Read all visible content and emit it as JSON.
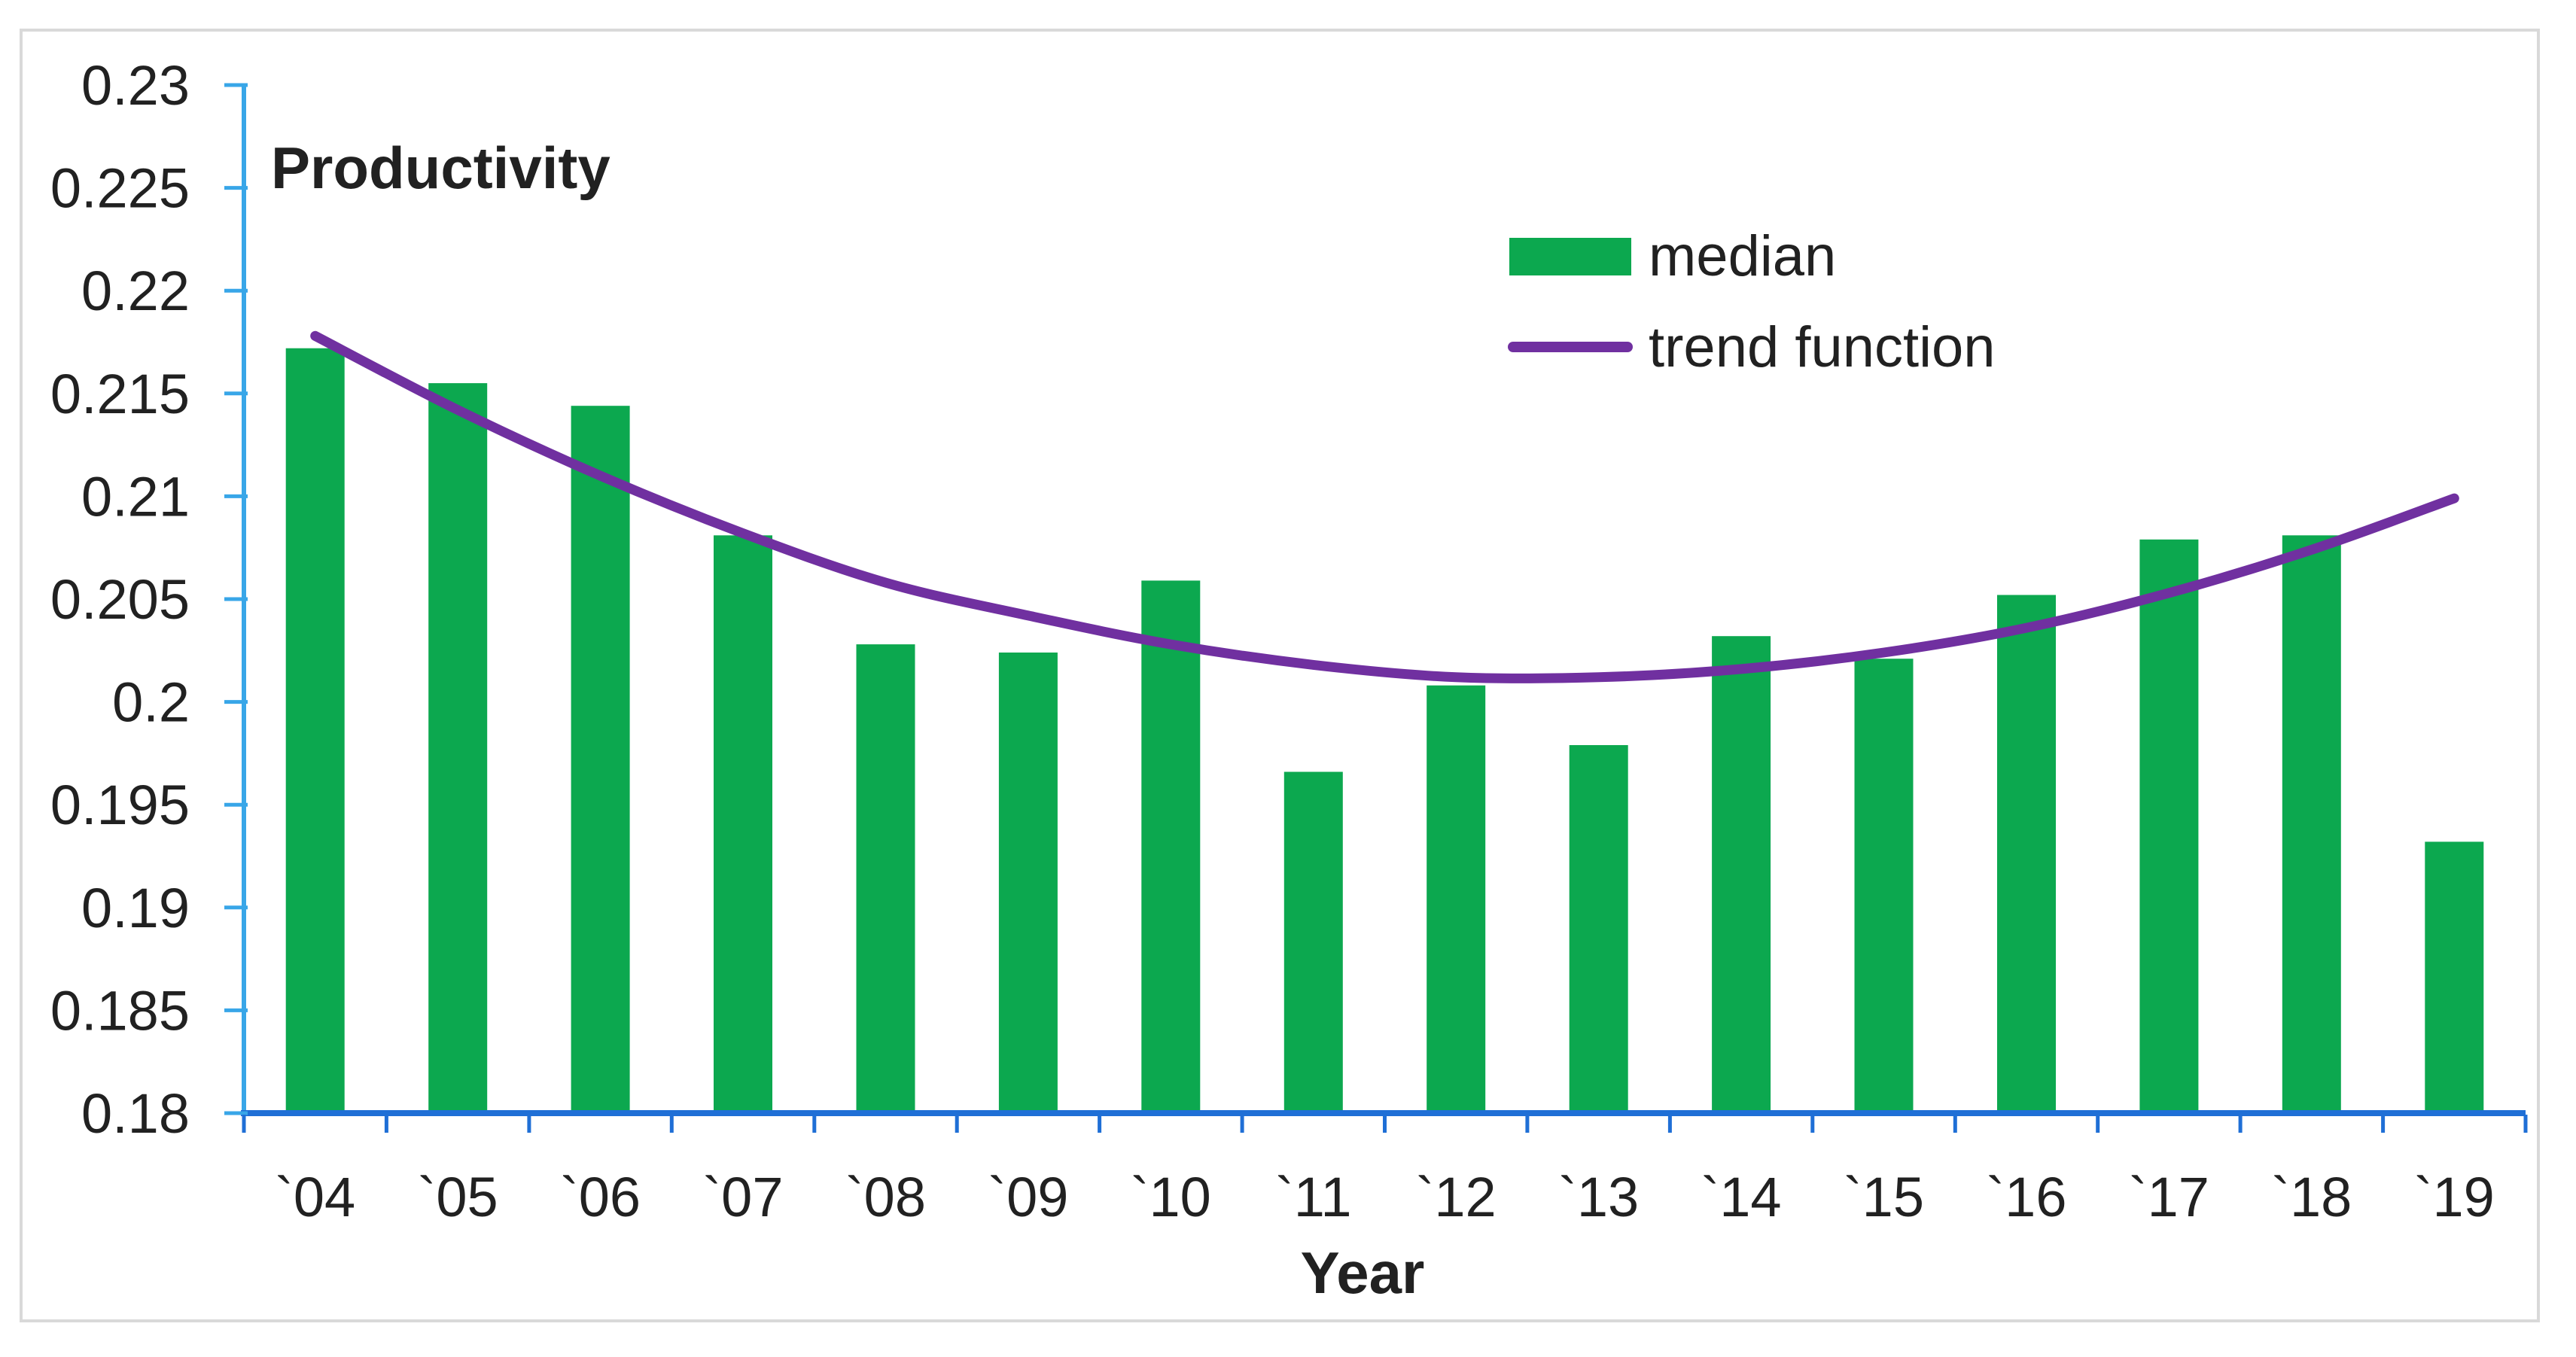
{
  "chart_data": {
    "type": "bar",
    "title": "",
    "ylabel": "Productivity",
    "xlabel": "Year",
    "categories": [
      "`04",
      "`05",
      "`06",
      "`07",
      "`08",
      "`09",
      "`10",
      "`11",
      "`12",
      "`13",
      "`14",
      "`15",
      "`16",
      "`17",
      "`18",
      "`19"
    ],
    "series": [
      {
        "name": "median",
        "type": "bar",
        "color": "#0CA84F",
        "values": [
          0.2172,
          0.2155,
          0.2144,
          0.2081,
          0.2028,
          0.2024,
          0.2059,
          0.1966,
          0.2008,
          0.1979,
          0.2032,
          0.2021,
          0.2052,
          0.2079,
          0.2081,
          0.1932
        ]
      },
      {
        "name": "trend function",
        "type": "line",
        "color": "#7030A0",
        "values": [
          0.2178,
          0.2142,
          0.211,
          0.2082,
          0.2058,
          0.2042,
          0.2028,
          0.2018,
          0.2012,
          0.2012,
          0.2016,
          0.2024,
          0.2036,
          0.2053,
          0.2074,
          0.2099
        ]
      }
    ],
    "y_axis": {
      "min": 0.18,
      "max": 0.23,
      "tick_step": 0.005,
      "tick_labels": [
        "0.23",
        "0.225",
        "0.22",
        "0.215",
        "0.21",
        "0.205",
        "0.2",
        "0.195",
        "0.19",
        "0.185",
        "0.18"
      ]
    },
    "x_axis": {
      "label": "Year"
    },
    "legend": {
      "position": "right-center",
      "entries": [
        "median",
        "trend function"
      ]
    },
    "grid": false
  },
  "colors": {
    "bar_green": "#0CA84F",
    "trend_purple": "#7030A0",
    "y_axis_blue": "#38A6E8",
    "x_axis_blue": "#1F6FD6",
    "frame_border": "#D9D9D9",
    "text": "#212121"
  }
}
